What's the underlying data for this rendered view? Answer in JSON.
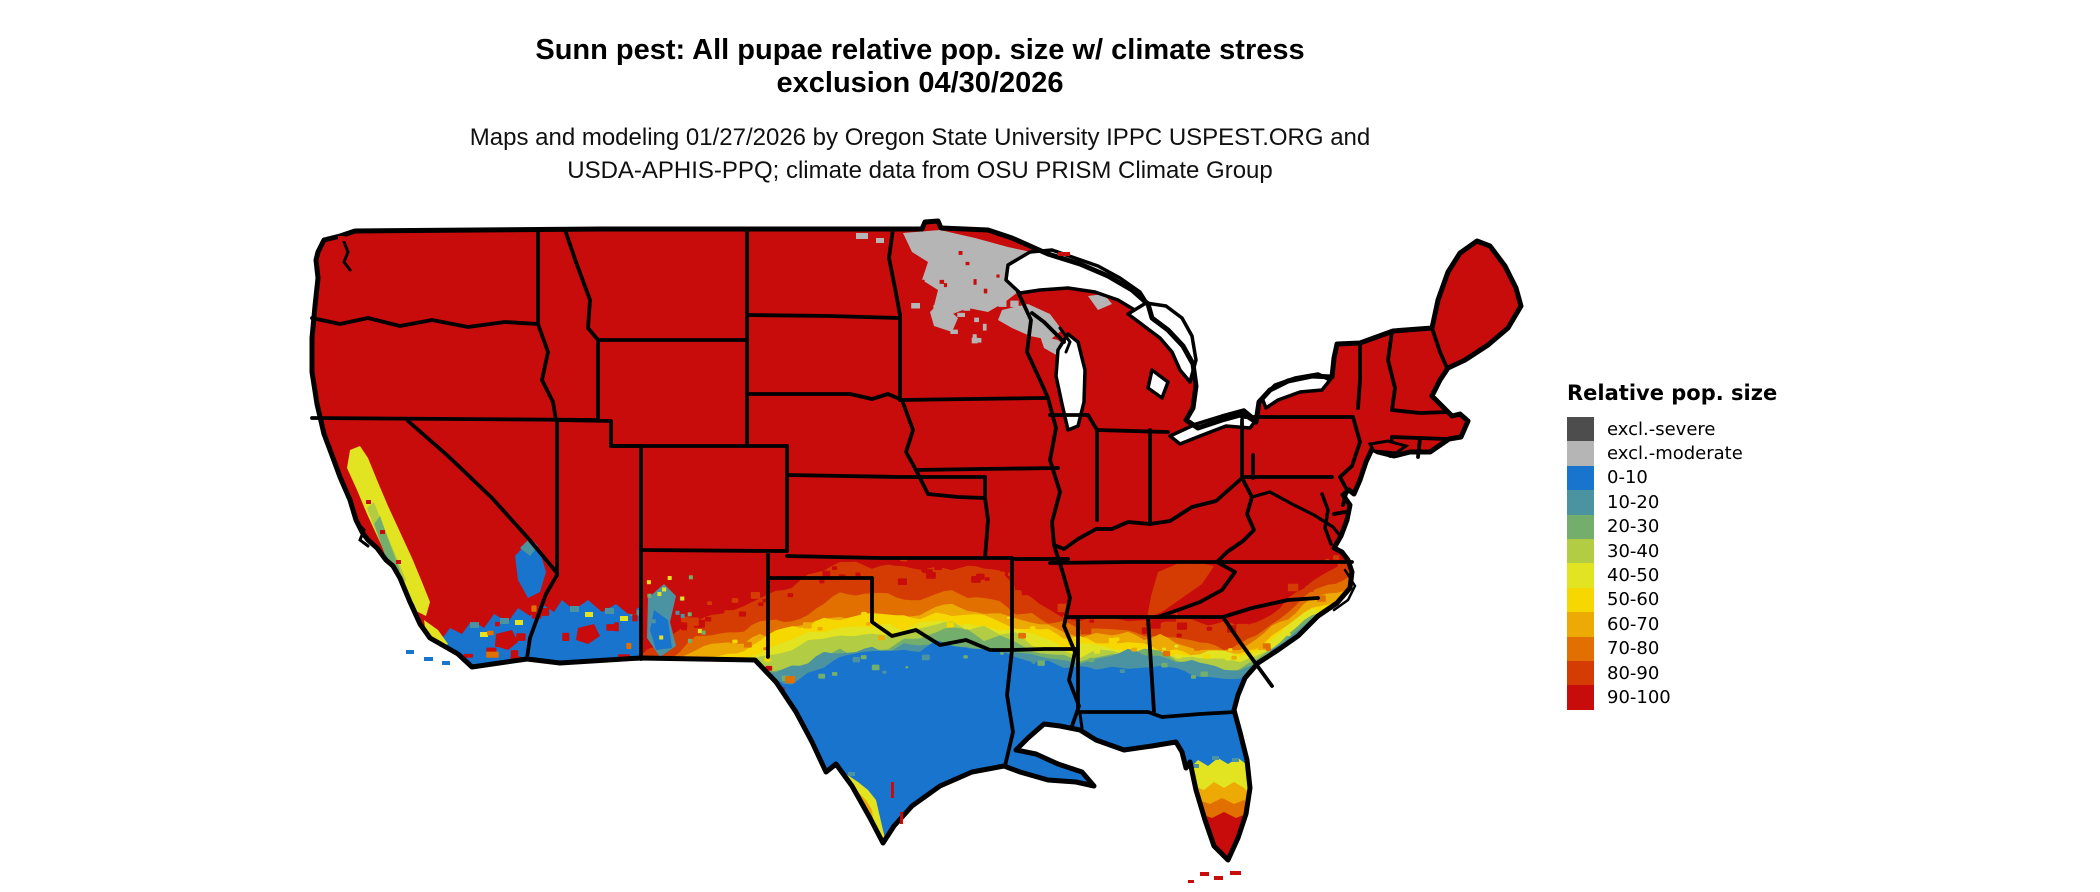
{
  "header": {
    "title_line1": "Sunn pest: All pupae relative pop. size w/ climate stress",
    "title_line2": "exclusion 04/30/2026",
    "subtitle_line1": "Maps and modeling 01/27/2026 by Oregon State University IPPC USPEST.ORG and",
    "subtitle_line2": "USDA-APHIS-PPQ; climate data from OSU PRISM Climate Group"
  },
  "legend": {
    "title": "Relative pop. size",
    "items": [
      {
        "label": "excl.-severe",
        "color": "#4d4d4d"
      },
      {
        "label": "excl.-moderate",
        "color": "#b5b5b5"
      },
      {
        "label": "0-10",
        "color": "#1874cd"
      },
      {
        "label": "10-20",
        "color": "#4c93a2"
      },
      {
        "label": "20-30",
        "color": "#73ae6d"
      },
      {
        "label": "30-40",
        "color": "#b2cc43"
      },
      {
        "label": "40-50",
        "color": "#e2e321"
      },
      {
        "label": "50-60",
        "color": "#f6d800"
      },
      {
        "label": "60-70",
        "color": "#eda904"
      },
      {
        "label": "70-80",
        "color": "#e17000"
      },
      {
        "label": "80-90",
        "color": "#d53c04"
      },
      {
        "label": "90-100",
        "color": "#c80b0b"
      }
    ]
  },
  "map": {
    "region": "Contiguous United States",
    "background_color": "#ffffff",
    "water_color": "#ffffff",
    "border_color": "#000000"
  }
}
